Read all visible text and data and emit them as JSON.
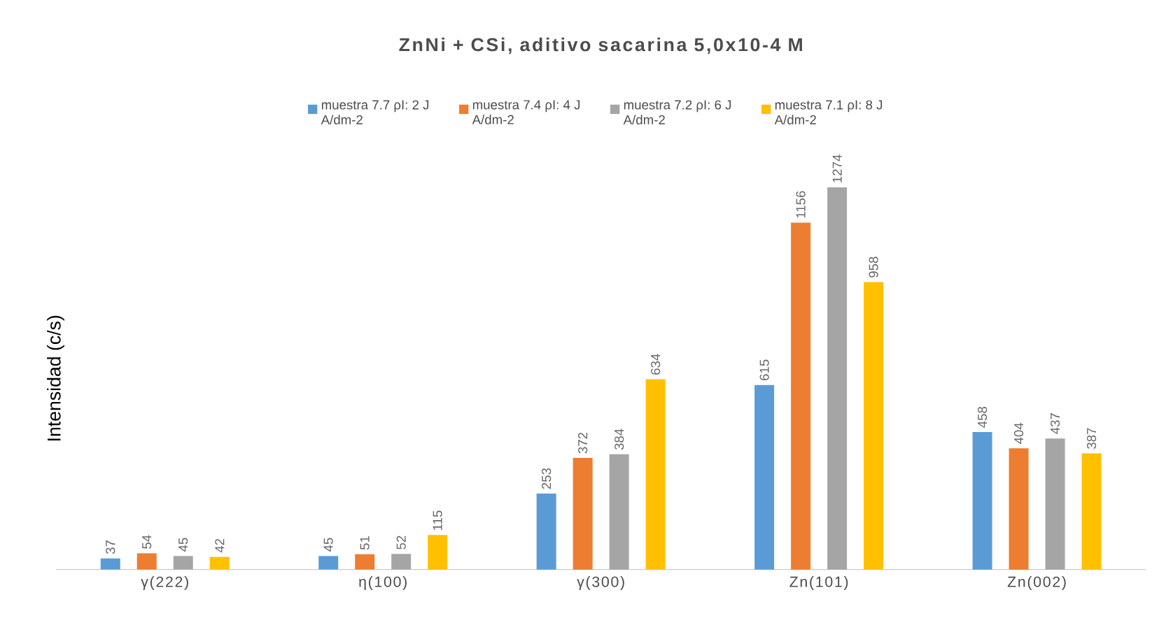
{
  "chart_data": {
    "type": "bar",
    "title": "ZnNi + CSi, aditivo sacarina 5,0x10-4 M",
    "ylabel": "Intensidad (c/s)",
    "categories": [
      "γ(222)",
      "η(100)",
      "γ(300)",
      "Zn(101)",
      "Zn(002)"
    ],
    "series": [
      {
        "name": "muestra 7.7 ρI: 2 J A/dm-2",
        "color": "#5b9bd5",
        "values": [
          37,
          45,
          253,
          615,
          458
        ]
      },
      {
        "name": "muestra 7.4 ρI: 4 J A/dm-2",
        "color": "#ed7d31",
        "values": [
          54,
          51,
          372,
          1156,
          404
        ]
      },
      {
        "name": "muestra 7.2 ρI: 6 J A/dm-2",
        "color": "#a5a5a5",
        "values": [
          45,
          52,
          384,
          1274,
          437
        ]
      },
      {
        "name": "muestra 7.1 ρI: 8 J A/dm-2",
        "color": "#ffc000",
        "values": [
          42,
          115,
          634,
          958,
          387
        ]
      }
    ],
    "data_labels": true,
    "legend": "top"
  }
}
